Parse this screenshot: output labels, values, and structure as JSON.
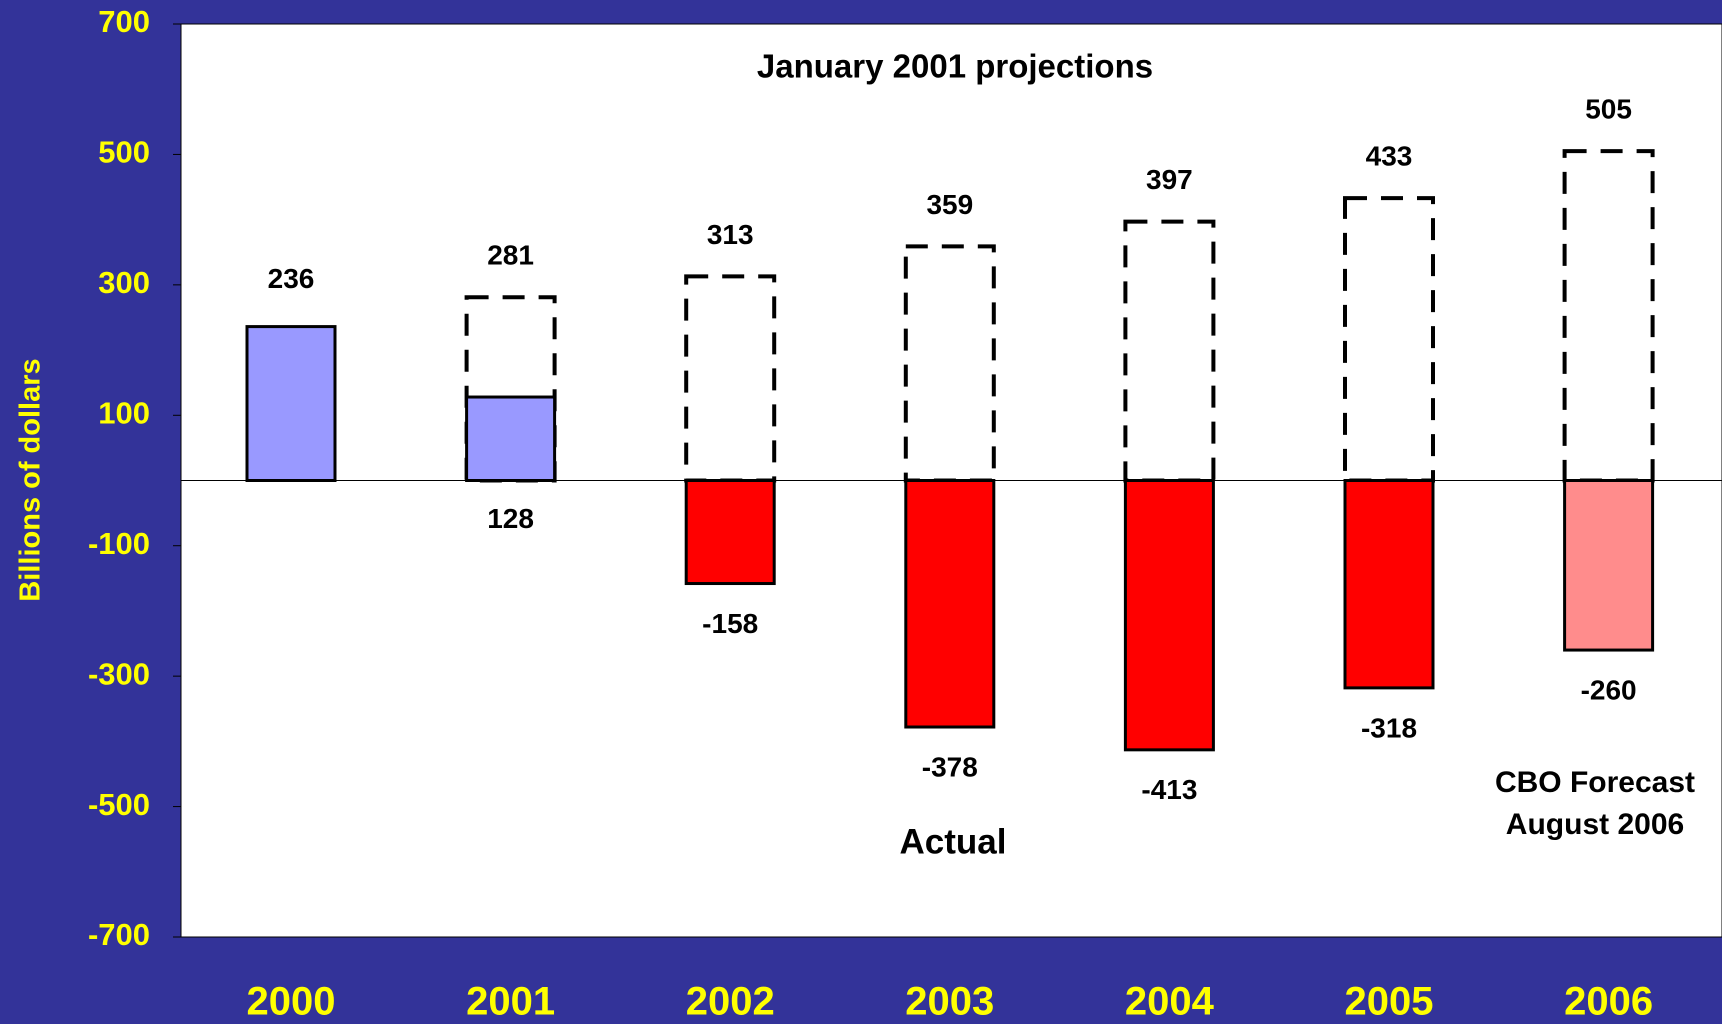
{
  "chart_data": {
    "type": "bar",
    "title": "January 2001 projections",
    "y_label": "Billions of dollars",
    "categories": [
      "2000",
      "2001",
      "2002",
      "2003",
      "2004",
      "2005",
      "2006"
    ],
    "series": [
      {
        "name": "Actual",
        "values": [
          236,
          128,
          -158,
          -378,
          -413,
          -318,
          -260
        ],
        "colors": [
          "#9999ff",
          "#9999ff",
          "#ff0000",
          "#ff0000",
          "#ff0000",
          "#ff0000",
          "#ff8c8c"
        ]
      },
      {
        "name": "January 2001 projections",
        "values": [
          null,
          281,
          313,
          359,
          397,
          433,
          505
        ],
        "color": "#000000"
      }
    ],
    "annotations": [
      "Actual",
      "CBO Forecast",
      "August 2006"
    ],
    "ylim": [
      -700,
      700
    ],
    "yticks": [
      -700,
      -500,
      -300,
      -100,
      100,
      300,
      500,
      700
    ],
    "background": "#333399",
    "tick_color": "#ffff00"
  }
}
